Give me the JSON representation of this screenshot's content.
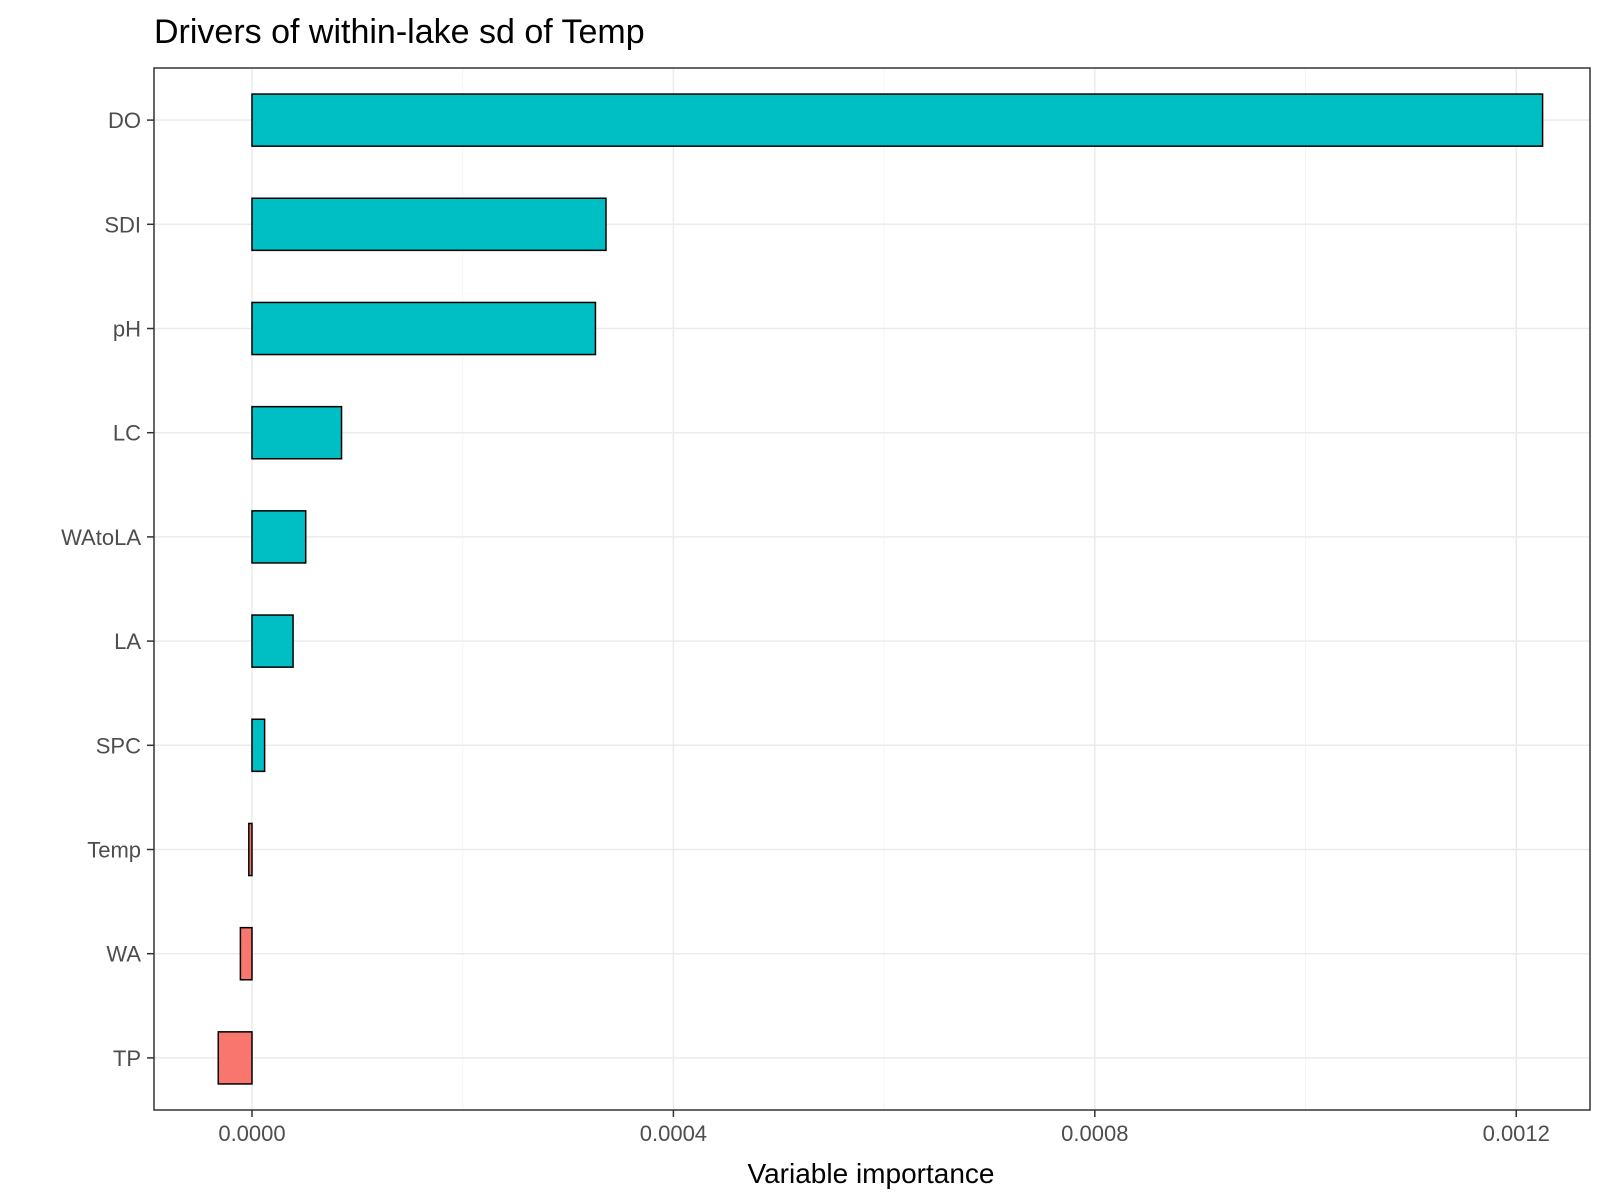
{
  "chart_data": {
    "type": "bar",
    "orientation": "horizontal",
    "title": "Drivers of within-lake sd of Temp",
    "xlabel": "Variable importance",
    "ylabel": "",
    "categories": [
      "DO",
      "SDI",
      "pH",
      "LC",
      "WAtoLA",
      "LA",
      "SPC",
      "Temp",
      "WA",
      "TP"
    ],
    "values": [
      0.001225,
      0.000336,
      0.000326,
      8.5e-05,
      5.1e-05,
      3.9e-05,
      1.2e-05,
      -3e-06,
      -1.1e-05,
      -3.2e-05
    ],
    "xlim": [
      -9.3e-05,
      0.00127
    ],
    "x_ticks": [
      0.0,
      0.0004,
      0.0008,
      0.0012
    ],
    "x_tick_labels": [
      "0.0000",
      "0.0004",
      "0.0008",
      "0.0012"
    ],
    "grid": true,
    "legend": "none",
    "colors": {
      "positive": "#00bfc4",
      "negative": "#f8766d",
      "bar_outline": "#000000",
      "grid_major": "#ebebeb",
      "grid_minor": "#f5f5f5",
      "panel_border": "#333333",
      "tick_text": "#4d4d4d"
    }
  }
}
